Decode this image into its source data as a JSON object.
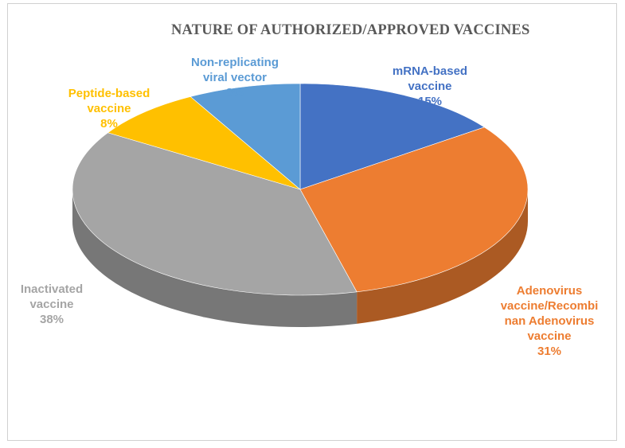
{
  "chart_data": {
    "type": "pie",
    "title": "NATURE OF AUTHORIZED/APPROVED VACCINES",
    "slices": [
      {
        "label": "mRNA-based vaccine",
        "display": "mRNA-based\nvaccine\n15%",
        "value": 15,
        "color": "#4472c4"
      },
      {
        "label": "Adenovirus vaccine/Recombinan Adenovirus vaccine",
        "display": "Adenovirus\nvaccine/Recombi\nnan Adenovirus\nvaccine\n31%",
        "value": 31,
        "color": "#ed7d31"
      },
      {
        "label": "Inactivated vaccine",
        "display": "Inactivated\nvaccine\n38%",
        "value": 38,
        "color": "#a5a5a5"
      },
      {
        "label": "Peptide-based vaccine",
        "display": "Peptide-based\nvaccine\n8%",
        "value": 8,
        "color": "#ffc000"
      },
      {
        "label": "Non-replicating viral vector",
        "display": "Non-replicating\nviral vector\n8%",
        "value": 8,
        "color": "#5b9bd5"
      }
    ],
    "legend": "none",
    "style": "3d-pie"
  }
}
